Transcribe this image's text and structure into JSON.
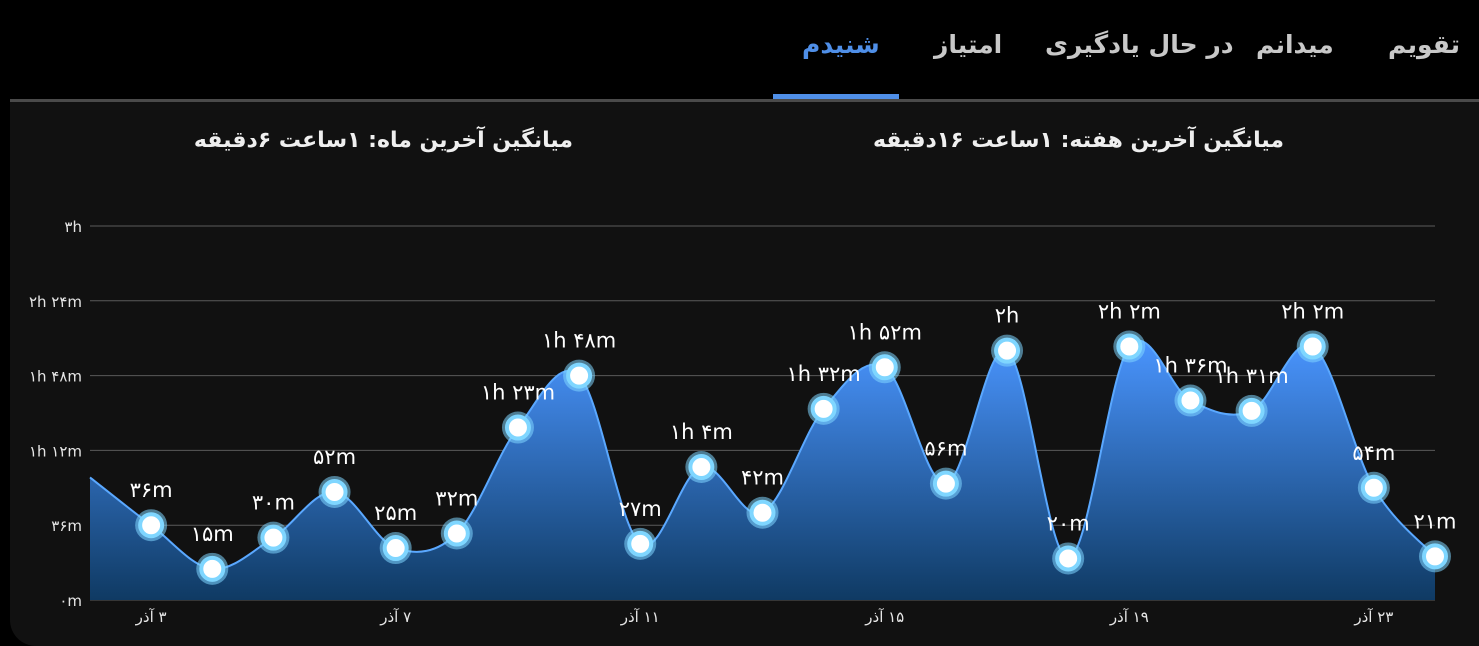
{
  "tabs": [
    {
      "label": "تقویم",
      "active": false
    },
    {
      "label": "میدانم",
      "active": false
    },
    {
      "label": "در حال یادگیری",
      "active": false
    },
    {
      "label": "امتیاز",
      "active": false
    },
    {
      "label": "شنیدم",
      "active": true
    }
  ],
  "averages": {
    "week": "میانگین آخرین هفته: ۱ساعت  ۱۶دقیقه",
    "month": "میانگین آخرین ماه: ۱ساعت  ۶دقیقه"
  },
  "colors": {
    "accent": "#4f8fe8",
    "area_top": "#4a95ff",
    "area_bottom": "#0f3a63",
    "marker_fill": "#ffffff",
    "marker_ring": "#7fd6ff"
  },
  "chart_data": {
    "type": "area",
    "y_unit": "minutes",
    "ylim": [
      0,
      180
    ],
    "y_ticks": [
      {
        "value": 0,
        "label": "۰m"
      },
      {
        "value": 36,
        "label": "۳۶m"
      },
      {
        "value": 72,
        "label": "۱h ۱۲m"
      },
      {
        "value": 108,
        "label": "۱h ۴۸m"
      },
      {
        "value": 144,
        "label": "۲h ۲۴m"
      },
      {
        "value": 180,
        "label": "۳h"
      }
    ],
    "x_ticks": [
      {
        "x": 3,
        "label": "۳ آذر"
      },
      {
        "x": 7,
        "label": "۷ آذر"
      },
      {
        "x": 11,
        "label": "۱۱ آذر"
      },
      {
        "x": 15,
        "label": "۱۵ آذر"
      },
      {
        "x": 19,
        "label": "۱۹ آذر"
      },
      {
        "x": 23,
        "label": "۲۳ آذر"
      }
    ],
    "xlim": [
      2,
      24
    ],
    "grid": true,
    "lead_in": {
      "x": 2,
      "y": 59
    },
    "points": [
      {
        "x": 3,
        "y": 36,
        "label": "۳۶m"
      },
      {
        "x": 4,
        "y": 15,
        "label": "۱۵m"
      },
      {
        "x": 5,
        "y": 30,
        "label": "۳۰m"
      },
      {
        "x": 6,
        "y": 52,
        "label": "۵۲m"
      },
      {
        "x": 7,
        "y": 25,
        "label": "۲۵m"
      },
      {
        "x": 8,
        "y": 32,
        "label": "۳۲m"
      },
      {
        "x": 9,
        "y": 83,
        "label": "۱h ۲۳m"
      },
      {
        "x": 10,
        "y": 108,
        "label": "۱h ۴۸m"
      },
      {
        "x": 11,
        "y": 27,
        "label": "۲۷m"
      },
      {
        "x": 12,
        "y": 64,
        "label": "۱h ۴m"
      },
      {
        "x": 13,
        "y": 42,
        "label": "۴۲m"
      },
      {
        "x": 14,
        "y": 92,
        "label": "۱h ۳۲m"
      },
      {
        "x": 15,
        "y": 112,
        "label": "۱h ۵۲m"
      },
      {
        "x": 16,
        "y": 56,
        "label": "۵۶m"
      },
      {
        "x": 17,
        "y": 120,
        "label": "۲h"
      },
      {
        "x": 18,
        "y": 20,
        "label": "۲۰m"
      },
      {
        "x": 19,
        "y": 122,
        "label": "۲h ۲m"
      },
      {
        "x": 20,
        "y": 96,
        "label": "۱h ۳۶m"
      },
      {
        "x": 21,
        "y": 91,
        "label": "۱h ۳۱m"
      },
      {
        "x": 22,
        "y": 122,
        "label": "۲h ۲m"
      },
      {
        "x": 23,
        "y": 54,
        "label": "۵۴m"
      },
      {
        "x": 24,
        "y": 21,
        "label": "۲۱m"
      }
    ]
  }
}
